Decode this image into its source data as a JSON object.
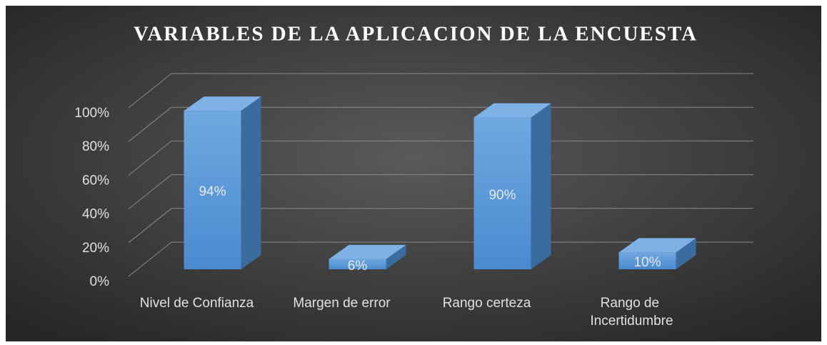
{
  "chart_data": {
    "type": "bar3d",
    "title": "VARIABLES DE LA APLICACION DE LA ENCUESTA",
    "categories": [
      "Nivel de Confianza",
      "Margen de error",
      "Rango certeza",
      "Rango de Incertidumbre"
    ],
    "values": [
      94,
      6,
      90,
      10
    ],
    "value_labels": [
      "94%",
      "6%",
      "90%",
      "10%"
    ],
    "color": "#5b9bd5",
    "ylim": [
      0,
      100
    ],
    "yticks": [
      {
        "value": 0,
        "label": "0%"
      },
      {
        "value": 20,
        "label": "20%"
      },
      {
        "value": 40,
        "label": "40%"
      },
      {
        "value": 60,
        "label": "60%"
      },
      {
        "value": 80,
        "label": "80%"
      },
      {
        "value": 100,
        "label": "100%"
      }
    ],
    "grid": true
  }
}
